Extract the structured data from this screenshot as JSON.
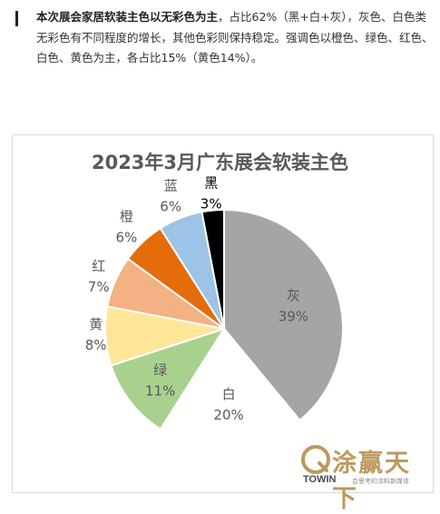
{
  "intro": {
    "bold": "本次展会家居软装主色以无彩色为主",
    "rest": "，占比62%（黑+白+灰），灰色、白色类无彩色有不同程度的增长，其他色彩则保持稳定。强调色以橙色、绿色、红色、白色、黄色为主，各占比15%（黄色14%）。"
  },
  "chart_data": {
    "type": "pie",
    "title": "2023年3月广东展会软装主色",
    "slices": [
      {
        "label": "灰",
        "value": 39,
        "display": "39%",
        "color": "#a5a5a5"
      },
      {
        "label": "白",
        "value": 20,
        "display": "20%",
        "color": "#ffffff"
      },
      {
        "label": "绿",
        "value": 11,
        "display": "11%",
        "color": "#a9d18e"
      },
      {
        "label": "黄",
        "value": 8,
        "display": "8%",
        "color": "#ffe699"
      },
      {
        "label": "红",
        "value": 7,
        "display": "7%",
        "color": "#f4b183"
      },
      {
        "label": "橙",
        "value": 6,
        "display": "6%",
        "color": "#e46c0a"
      },
      {
        "label": "蓝",
        "value": 6,
        "display": "6%",
        "color": "#9dc3e6"
      },
      {
        "label": "黑",
        "value": 3,
        "display": "3%",
        "color": "#000000"
      }
    ]
  },
  "watermark": {
    "text": "涂赢天下",
    "brand": "TOWIN",
    "sub": "会思考的涂料新媒体"
  }
}
